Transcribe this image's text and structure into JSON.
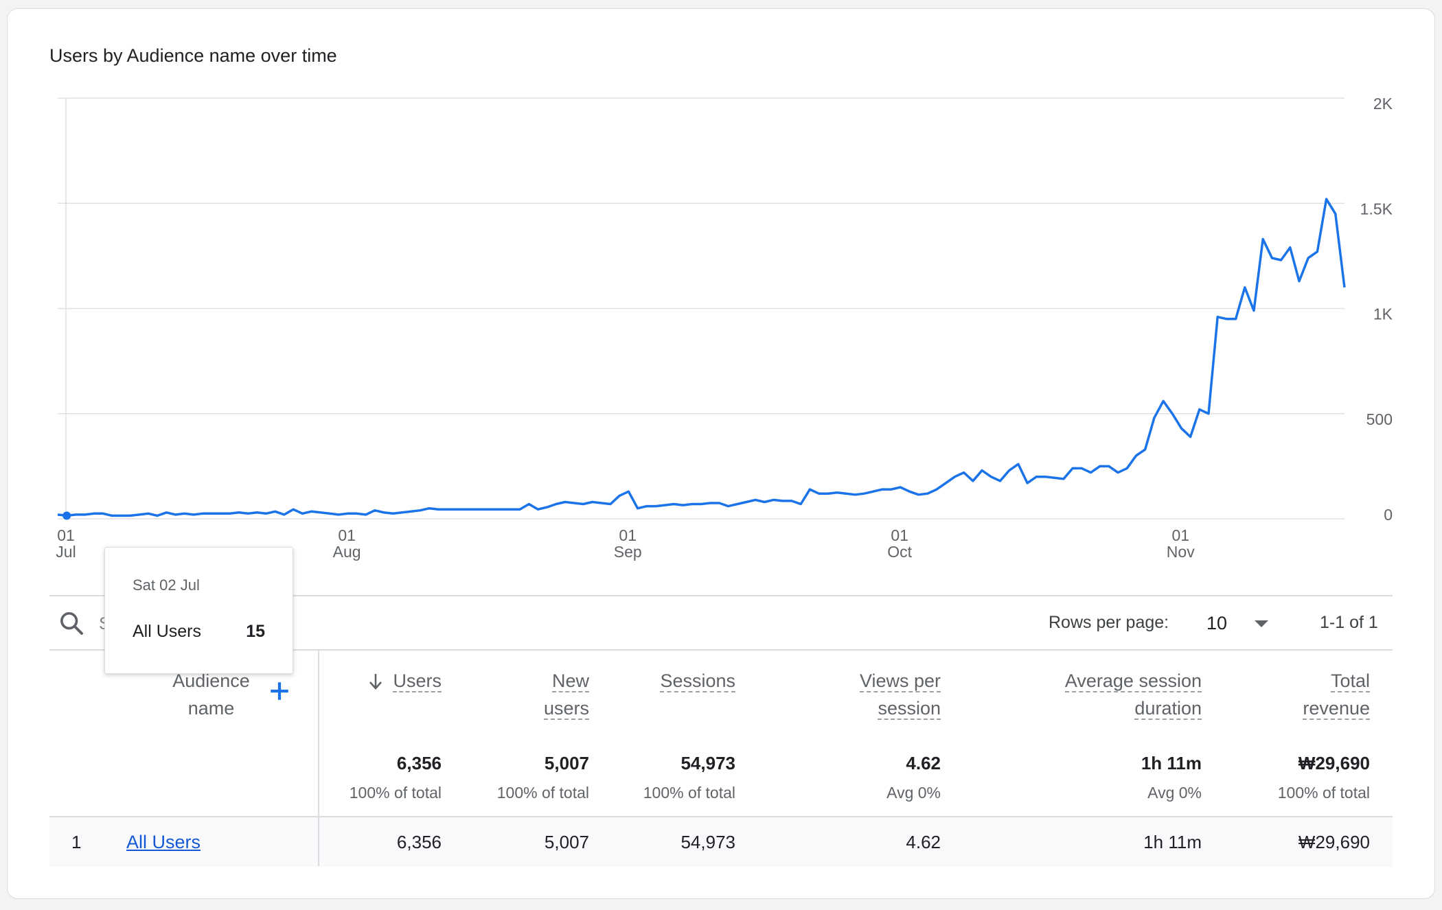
{
  "chart": {
    "title": "Users by Audience name over time",
    "y_ticks": [
      "2K",
      "1.5K",
      "1K",
      "500",
      "0"
    ],
    "x_ticks": [
      {
        "day": "01",
        "month": "Jul"
      },
      {
        "day": "01",
        "month": "Aug"
      },
      {
        "day": "01",
        "month": "Sep"
      },
      {
        "day": "01",
        "month": "Oct"
      },
      {
        "day": "01",
        "month": "Nov"
      }
    ],
    "series_color": "#1a73e8"
  },
  "chart_data": {
    "type": "line",
    "title": "Users by Audience name over time",
    "xlabel": "",
    "ylabel": "",
    "ylim": [
      0,
      2000
    ],
    "x_range": [
      "2022-07-01",
      "2022-11-20"
    ],
    "grid": true,
    "series": [
      {
        "name": "All Users",
        "x": [
          "2022-07-01",
          "2022-07-02",
          "2022-07-03",
          "2022-07-04",
          "2022-07-05",
          "2022-07-06",
          "2022-07-07",
          "2022-07-08",
          "2022-07-09",
          "2022-07-10",
          "2022-07-11",
          "2022-07-12",
          "2022-07-13",
          "2022-07-14",
          "2022-07-15",
          "2022-07-16",
          "2022-07-17",
          "2022-07-18",
          "2022-07-19",
          "2022-07-20",
          "2022-07-21",
          "2022-07-22",
          "2022-07-23",
          "2022-07-24",
          "2022-07-25",
          "2022-07-26",
          "2022-07-27",
          "2022-07-28",
          "2022-07-29",
          "2022-07-30",
          "2022-07-31",
          "2022-08-01",
          "2022-08-02",
          "2022-08-03",
          "2022-08-04",
          "2022-08-05",
          "2022-08-06",
          "2022-08-07",
          "2022-08-08",
          "2022-08-09",
          "2022-08-10",
          "2022-08-11",
          "2022-08-12",
          "2022-08-13",
          "2022-08-14",
          "2022-08-15",
          "2022-08-16",
          "2022-08-17",
          "2022-08-18",
          "2022-08-19",
          "2022-08-20",
          "2022-08-21",
          "2022-08-22",
          "2022-08-23",
          "2022-08-24",
          "2022-08-25",
          "2022-08-26",
          "2022-08-27",
          "2022-08-28",
          "2022-08-29",
          "2022-08-30",
          "2022-08-31",
          "2022-09-01",
          "2022-09-02",
          "2022-09-03",
          "2022-09-04",
          "2022-09-05",
          "2022-09-06",
          "2022-09-07",
          "2022-09-08",
          "2022-09-09",
          "2022-09-10",
          "2022-09-11",
          "2022-09-12",
          "2022-09-13",
          "2022-09-14",
          "2022-09-15",
          "2022-09-16",
          "2022-09-17",
          "2022-09-18",
          "2022-09-19",
          "2022-09-20",
          "2022-09-21",
          "2022-09-22",
          "2022-09-23",
          "2022-09-24",
          "2022-09-25",
          "2022-09-26",
          "2022-09-27",
          "2022-09-28",
          "2022-09-29",
          "2022-09-30",
          "2022-10-01",
          "2022-10-02",
          "2022-10-03",
          "2022-10-04",
          "2022-10-05",
          "2022-10-06",
          "2022-10-07",
          "2022-10-08",
          "2022-10-09",
          "2022-10-10",
          "2022-10-11",
          "2022-10-12",
          "2022-10-13",
          "2022-10-14",
          "2022-10-15",
          "2022-10-16",
          "2022-10-17",
          "2022-10-18",
          "2022-10-19",
          "2022-10-20",
          "2022-10-21",
          "2022-10-22",
          "2022-10-23",
          "2022-10-24",
          "2022-10-25",
          "2022-10-26",
          "2022-10-27",
          "2022-10-28",
          "2022-10-29",
          "2022-10-30",
          "2022-10-31",
          "2022-11-01",
          "2022-11-02",
          "2022-11-03",
          "2022-11-04",
          "2022-11-05",
          "2022-11-06",
          "2022-11-07",
          "2022-11-08",
          "2022-11-09",
          "2022-11-10",
          "2022-11-11",
          "2022-11-12",
          "2022-11-13",
          "2022-11-14",
          "2022-11-15",
          "2022-11-16",
          "2022-11-17",
          "2022-11-18",
          "2022-11-19",
          "2022-11-20"
        ],
        "values": [
          20,
          15,
          20,
          20,
          25,
          25,
          15,
          15,
          15,
          20,
          25,
          15,
          30,
          20,
          25,
          20,
          25,
          25,
          25,
          25,
          30,
          25,
          30,
          25,
          35,
          20,
          45,
          25,
          35,
          30,
          25,
          20,
          25,
          25,
          20,
          40,
          30,
          25,
          30,
          35,
          40,
          50,
          45,
          45,
          45,
          45,
          45,
          45,
          45,
          45,
          45,
          45,
          70,
          45,
          55,
          70,
          80,
          75,
          70,
          80,
          75,
          70,
          110,
          130,
          50,
          60,
          60,
          65,
          70,
          65,
          70,
          70,
          75,
          75,
          60,
          70,
          80,
          90,
          80,
          90,
          85,
          85,
          70,
          140,
          120,
          120,
          125,
          120,
          115,
          120,
          130,
          140,
          140,
          150,
          130,
          115,
          120,
          140,
          170,
          200,
          220,
          180,
          230,
          200,
          180,
          230,
          260,
          170,
          200,
          200,
          195,
          190,
          240,
          240,
          220,
          250,
          250,
          220,
          240,
          300,
          330,
          480,
          560,
          500,
          430,
          390,
          520,
          500,
          960,
          950,
          950,
          1100,
          990,
          1330,
          1240,
          1230,
          1290,
          1130,
          1240,
          1270,
          1520,
          1450,
          1100
        ]
      }
    ]
  },
  "tooltip": {
    "date": "Sat 02 Jul",
    "series": "All Users",
    "value": "15"
  },
  "toolbar": {
    "search_placeholder": "Search...",
    "rows_per_page_label": "Rows per page:",
    "rows_per_page_value": "10",
    "pagination": "1-1 of 1"
  },
  "table": {
    "dimension_header_line1": "Audience",
    "dimension_header_line2": "name",
    "columns": [
      {
        "line1": "Users",
        "line2": "",
        "total": "6,356",
        "sub": "100% of total"
      },
      {
        "line1": "New",
        "line2": "users",
        "total": "5,007",
        "sub": "100% of total"
      },
      {
        "line1": "Sessions",
        "line2": "",
        "total": "54,973",
        "sub": "100% of total"
      },
      {
        "line1": "Views per",
        "line2": "session",
        "total": "4.62",
        "sub": "Avg 0%"
      },
      {
        "line1": "Average session",
        "line2": "duration",
        "total": "1h 11m",
        "sub": "Avg 0%"
      },
      {
        "line1": "Total",
        "line2": "revenue",
        "total": "₩29,690",
        "sub": "100% of total"
      }
    ],
    "rows": [
      {
        "index": "1",
        "name": "All Users",
        "values": [
          "6,356",
          "5,007",
          "54,973",
          "4.62",
          "1h 11m",
          "₩29,690"
        ]
      }
    ]
  }
}
